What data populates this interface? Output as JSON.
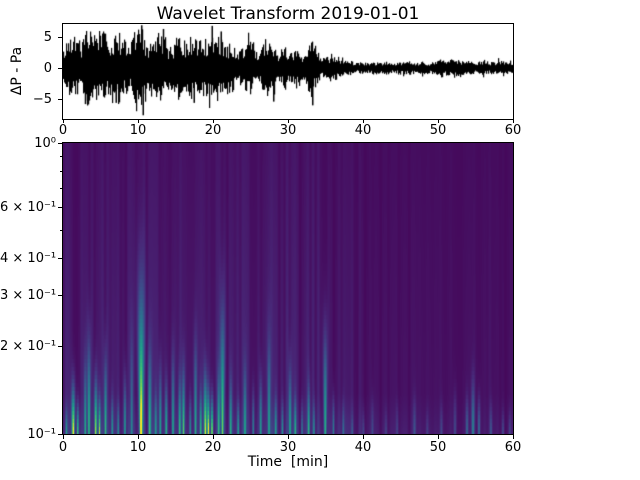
{
  "figure": {
    "title": "Wavelet Transform 2019-01-01",
    "background": "#ffffff",
    "spine_color": "#000000",
    "text_color": "#000000"
  },
  "chart_data": [
    {
      "type": "line",
      "panel": "waveform",
      "title": "Wavelet Transform 2019-01-01",
      "ylabel": "ΔP - Pa",
      "line_color": "#000000",
      "xlim": [
        0,
        60
      ],
      "ylim": [
        -8.2,
        7.1
      ],
      "yticks": [
        5,
        0,
        -5
      ],
      "ytick_labels": [
        "5",
        "0",
        "−5"
      ],
      "xticks": [
        0,
        10,
        20,
        30,
        40,
        50,
        60
      ],
      "xtick_labels": [
        "0",
        "10",
        "20",
        "30",
        "40",
        "50",
        "60"
      ],
      "envelope_note": "peak amplitude (Pa) of the noisy pressure trace, sampled once per minute t=0..60",
      "envelope_amplitude_pa": [
        4.2,
        4.8,
        4.6,
        5.2,
        4.6,
        5.0,
        4.6,
        5.2,
        4.4,
        4.8,
        6.2,
        4.8,
        4.6,
        5.6,
        4.6,
        4.2,
        4.4,
        4.8,
        4.4,
        5.8,
        5.0,
        4.4,
        4.0,
        4.2,
        3.8,
        3.8,
        3.4,
        4.2,
        3.6,
        3.0,
        3.2,
        2.8,
        2.6,
        4.2,
        2.8,
        2.4,
        2.0,
        1.6,
        1.2,
        1.0,
        1.0,
        1.0,
        0.9,
        0.9,
        1.0,
        0.9,
        1.0,
        0.9,
        1.0,
        1.1,
        1.3,
        1.5,
        1.7,
        1.2,
        1.1,
        1.0,
        1.2,
        1.1,
        1.2,
        1.1,
        1.0
      ],
      "spikes": [
        {
          "t": 2.9,
          "pa": -5.8
        },
        {
          "t": 7.0,
          "pa": -5.6
        },
        {
          "t": 10.4,
          "pa": 6.9
        },
        {
          "t": 10.6,
          "pa": -7.6
        },
        {
          "t": 13.3,
          "pa": 6.3
        },
        {
          "t": 17.4,
          "pa": -5.6
        },
        {
          "t": 19.8,
          "pa": 6.8
        },
        {
          "t": 21.0,
          "pa": 5.9
        },
        {
          "t": 28.0,
          "pa": -5.4
        },
        {
          "t": 33.2,
          "pa": -6.0
        }
      ]
    },
    {
      "type": "heatmap",
      "panel": "wavelet-scalogram",
      "xlabel": "Time  [min]",
      "xlim": [
        0,
        60
      ],
      "ylim_log": [
        0.1,
        1.0
      ],
      "yticks_labeled": [
        1.0,
        0.6,
        0.4,
        0.3,
        0.2,
        0.1
      ],
      "ytick_labels": [
        "10⁰",
        "6 × 10⁻¹",
        "4 × 10⁻¹",
        "3 × 10⁻¹",
        "2 × 10⁻¹",
        "10⁻¹"
      ],
      "yticks_minor": [
        0.9,
        0.8,
        0.7,
        0.5
      ],
      "xticks": [
        0,
        10,
        20,
        30,
        40,
        50,
        60
      ],
      "xtick_labels": [
        "0",
        "10",
        "20",
        "30",
        "40",
        "50",
        "60"
      ],
      "colormap": "viridis",
      "colormap_stops": [
        {
          "pos": 0.0,
          "color": "#440154"
        },
        {
          "pos": 0.125,
          "color": "#482878"
        },
        {
          "pos": 0.25,
          "color": "#3e4a89"
        },
        {
          "pos": 0.375,
          "color": "#31688e"
        },
        {
          "pos": 0.5,
          "color": "#26828e"
        },
        {
          "pos": 0.625,
          "color": "#1f9e89"
        },
        {
          "pos": 0.75,
          "color": "#35b779"
        },
        {
          "pos": 0.875,
          "color": "#6ece58"
        },
        {
          "pos": 1.0,
          "color": "#fde725"
        }
      ],
      "background_level": 0.022,
      "event_fields": [
        "t_min",
        "intensity_0to1",
        "reach_freq",
        "width_min"
      ],
      "events": [
        [
          0.4,
          0.45,
          0.13,
          0.18
        ],
        [
          1.3,
          0.97,
          0.17,
          0.3
        ],
        [
          1.9,
          0.75,
          0.14,
          0.22
        ],
        [
          2.9,
          0.55,
          0.21,
          0.2
        ],
        [
          3.4,
          0.72,
          0.26,
          0.22
        ],
        [
          4.3,
          0.88,
          0.18,
          0.25
        ],
        [
          4.8,
          0.8,
          0.15,
          0.2
        ],
        [
          5.6,
          0.65,
          0.22,
          0.22
        ],
        [
          6.5,
          0.45,
          0.15,
          0.2
        ],
        [
          7.3,
          0.4,
          0.14,
          0.18
        ],
        [
          8.2,
          0.55,
          0.18,
          0.22
        ],
        [
          9.1,
          0.35,
          0.28,
          0.2
        ],
        [
          10.35,
          1.0,
          0.45,
          0.33
        ],
        [
          11.5,
          0.6,
          0.24,
          0.25
        ],
        [
          12.3,
          0.45,
          0.16,
          0.2
        ],
        [
          12.9,
          0.55,
          0.2,
          0.22
        ],
        [
          13.7,
          0.6,
          0.17,
          0.22
        ],
        [
          14.6,
          0.55,
          0.22,
          0.22
        ],
        [
          15.5,
          0.6,
          0.18,
          0.22
        ],
        [
          16.0,
          0.7,
          0.2,
          0.22
        ],
        [
          16.9,
          0.45,
          0.15,
          0.2
        ],
        [
          17.6,
          0.55,
          0.25,
          0.22
        ],
        [
          18.3,
          0.6,
          0.16,
          0.2
        ],
        [
          18.9,
          0.9,
          0.19,
          0.25
        ],
        [
          19.3,
          0.97,
          0.16,
          0.22
        ],
        [
          19.8,
          0.95,
          0.15,
          0.22
        ],
        [
          20.7,
          0.6,
          0.2,
          0.22
        ],
        [
          21.2,
          0.78,
          0.36,
          0.26
        ],
        [
          22.3,
          0.55,
          0.18,
          0.22
        ],
        [
          23.3,
          0.48,
          0.14,
          0.2
        ],
        [
          24.2,
          0.52,
          0.2,
          0.22
        ],
        [
          25.3,
          0.42,
          0.16,
          0.2
        ],
        [
          26.3,
          0.55,
          0.18,
          0.22
        ],
        [
          27.4,
          0.5,
          0.26,
          0.22
        ],
        [
          28.3,
          0.48,
          0.15,
          0.2
        ],
        [
          29.2,
          0.42,
          0.14,
          0.2
        ],
        [
          30.2,
          0.6,
          0.2,
          0.22
        ],
        [
          30.9,
          0.55,
          0.15,
          0.2
        ],
        [
          31.8,
          0.35,
          0.14,
          0.2
        ],
        [
          32.7,
          0.55,
          0.17,
          0.22
        ],
        [
          33.4,
          0.4,
          0.14,
          0.2
        ],
        [
          34.9,
          0.65,
          0.29,
          0.26
        ],
        [
          36.0,
          0.42,
          0.15,
          0.2
        ],
        [
          37.3,
          0.28,
          0.14,
          0.2
        ],
        [
          38.5,
          0.18,
          0.13,
          0.2
        ],
        [
          40.0,
          0.15,
          0.13,
          0.25
        ],
        [
          41.2,
          0.18,
          0.15,
          0.25
        ],
        [
          43.0,
          0.12,
          0.13,
          0.25
        ],
        [
          44.5,
          0.14,
          0.14,
          0.25
        ],
        [
          46.8,
          0.2,
          0.15,
          0.28
        ],
        [
          48.5,
          0.12,
          0.13,
          0.25
        ],
        [
          50.4,
          0.16,
          0.14,
          0.25
        ],
        [
          52.2,
          0.2,
          0.16,
          0.28
        ],
        [
          53.8,
          0.3,
          0.15,
          0.25
        ],
        [
          54.6,
          0.42,
          0.18,
          0.28
        ],
        [
          55.4,
          0.35,
          0.15,
          0.25
        ],
        [
          57.0,
          0.22,
          0.14,
          0.25
        ],
        [
          58.6,
          0.18,
          0.13,
          0.25
        ],
        [
          59.5,
          0.15,
          0.13,
          0.25
        ]
      ]
    }
  ]
}
